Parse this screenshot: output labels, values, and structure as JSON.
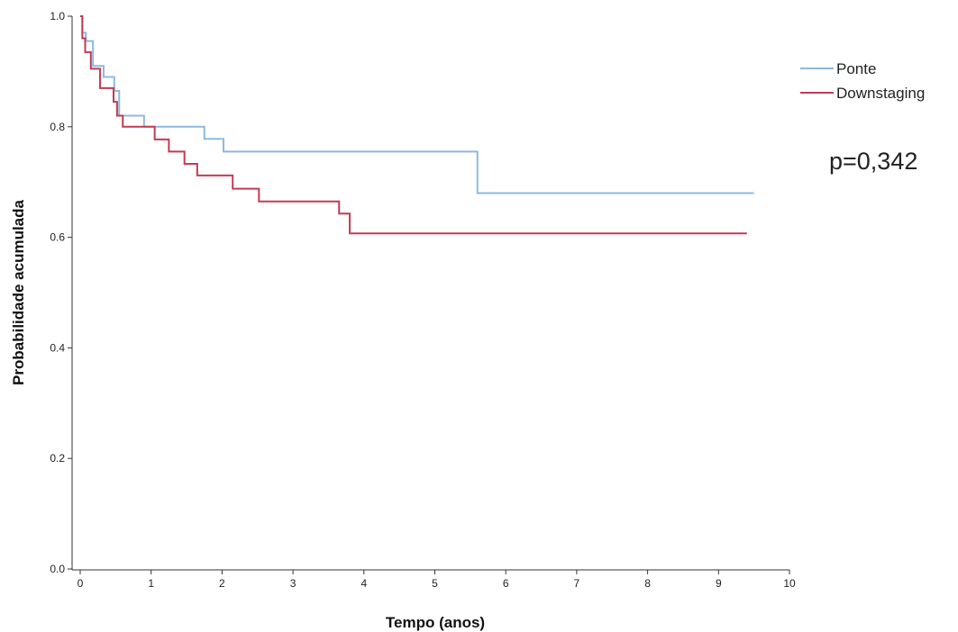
{
  "chart_data": {
    "type": "line",
    "title": "",
    "xlabel": "Tempo (anos)",
    "ylabel": "Probabilidade acumulada",
    "xlim": [
      0,
      10
    ],
    "ylim": [
      0,
      1
    ],
    "xticks": [
      0,
      1,
      2,
      3,
      4,
      5,
      6,
      7,
      8,
      9,
      10
    ],
    "yticks": [
      0.0,
      0.2,
      0.4,
      0.6,
      0.8,
      1.0
    ],
    "xtick_labels": [
      "0",
      "1",
      "2",
      "3",
      "4",
      "5",
      "6",
      "7",
      "8",
      "9",
      "10"
    ],
    "ytick_labels": [
      "0.0",
      "0.2",
      "0.4",
      "0.6",
      "0.8",
      "1.0"
    ],
    "grid": false,
    "legend": "top-right",
    "annotation": "p=0,342",
    "series": [
      {
        "name": "Ponte",
        "color": "#8fb8dd",
        "step": true,
        "x": [
          0,
          0.03,
          0.08,
          0.18,
          0.33,
          0.48,
          0.55,
          0.9,
          1.75,
          2.02,
          5.6,
          9.5
        ],
        "y": [
          1.0,
          0.97,
          0.955,
          0.91,
          0.89,
          0.865,
          0.82,
          0.8,
          0.778,
          0.755,
          0.68,
          0.68
        ]
      },
      {
        "name": "Downstaging",
        "color": "#c23b54",
        "step": true,
        "x": [
          0,
          0.03,
          0.07,
          0.15,
          0.28,
          0.47,
          0.52,
          0.6,
          1.05,
          1.25,
          1.47,
          1.65,
          2.15,
          2.52,
          3.65,
          3.8,
          9.4
        ],
        "y": [
          1.0,
          0.96,
          0.935,
          0.905,
          0.87,
          0.845,
          0.82,
          0.8,
          0.777,
          0.755,
          0.733,
          0.712,
          0.688,
          0.665,
          0.643,
          0.607,
          0.607
        ]
      }
    ]
  }
}
